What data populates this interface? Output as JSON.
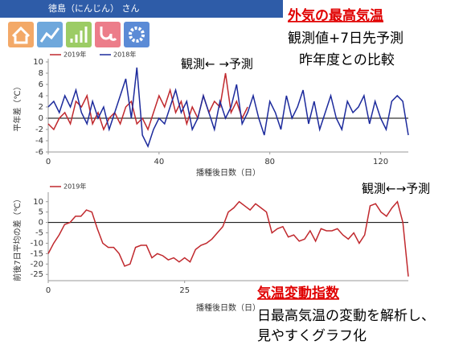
{
  "header": {
    "title": "徳島（にんじん） さん"
  },
  "annotations": {
    "top_title": "外気の最高気温",
    "top_line1": "観測値+7日先予測",
    "top_line2": "昨年度との比較",
    "bottom_title": "気温変動指数",
    "bottom_line1": "日最高気温の変動を解析し、",
    "bottom_line2": "見やすくグラフ化"
  },
  "chart_data": [
    {
      "type": "line",
      "annotation": "観測← →予測",
      "x_label": "播種後日数（日）",
      "y_label": "平年差（℃）",
      "xlim": [
        0,
        130
      ],
      "xticks": [
        0,
        40,
        80,
        120
      ],
      "ylim": [
        -6,
        10
      ],
      "yticks": [
        -6,
        -4,
        -2,
        0,
        2,
        4,
        6,
        8,
        10
      ],
      "x": [
        0,
        2,
        4,
        6,
        8,
        10,
        12,
        14,
        16,
        18,
        20,
        22,
        24,
        26,
        28,
        30,
        32,
        34,
        36,
        38,
        40,
        42,
        44,
        46,
        48,
        50,
        52,
        54,
        56,
        58,
        60,
        62,
        64,
        66,
        68,
        70,
        72,
        74,
        76,
        78,
        80,
        82,
        84,
        86,
        88,
        90,
        92,
        94,
        96,
        98,
        100,
        102,
        104,
        106,
        108,
        110,
        112,
        114,
        116,
        118,
        120,
        122,
        124,
        126,
        128,
        130
      ],
      "series": [
        {
          "name": "2019年",
          "color": "#c0282d",
          "values": [
            -1,
            -2,
            0,
            1,
            -1,
            3,
            2,
            4,
            -1,
            1,
            -2,
            0,
            1,
            -1,
            2,
            3,
            -1,
            0,
            -2,
            1,
            4,
            2,
            5,
            1,
            3,
            -1,
            2,
            0,
            4,
            1,
            3,
            2,
            8,
            1,
            3,
            0,
            2,
            null,
            null,
            null,
            null,
            null,
            null,
            null,
            null,
            null,
            null,
            null,
            null,
            null,
            null,
            null,
            null,
            null,
            null,
            null,
            null,
            null,
            null,
            null,
            null,
            null,
            null,
            null,
            null,
            null
          ]
        },
        {
          "name": "2018年",
          "color": "#1c2a9c",
          "values": [
            2,
            3,
            1,
            4,
            2,
            5,
            1,
            -1,
            3,
            0,
            2,
            -2,
            1,
            4,
            7,
            0,
            9,
            -3,
            -5,
            -2,
            0,
            -1,
            2,
            5,
            1,
            3,
            -2,
            0,
            4,
            1,
            -2,
            3,
            0,
            2,
            6,
            -1,
            1,
            4,
            0,
            -3,
            3,
            1,
            -2,
            4,
            0,
            2,
            5,
            -1,
            3,
            -2,
            1,
            4,
            0,
            -2,
            3,
            1,
            2,
            4,
            -1,
            3,
            0,
            -2,
            3,
            4,
            3,
            -3
          ]
        }
      ]
    },
    {
      "type": "line",
      "annotation": "観測←→予測",
      "x_label": "播種後日数（日）",
      "y_label": "前後7日平均の差（℃）",
      "xlim": [
        0,
        66
      ],
      "xticks": [
        0,
        25
      ],
      "ylim": [
        -28,
        13
      ],
      "yticks": [
        10,
        5,
        0,
        -5,
        -10,
        -15,
        -20,
        -25
      ],
      "x": [
        0,
        1,
        2,
        3,
        4,
        5,
        6,
        7,
        8,
        9,
        10,
        11,
        12,
        13,
        14,
        15,
        16,
        17,
        18,
        19,
        20,
        21,
        22,
        23,
        24,
        25,
        26,
        27,
        28,
        29,
        30,
        31,
        32,
        33,
        34,
        35,
        36,
        37,
        38,
        39,
        40,
        41,
        42,
        43,
        44,
        45,
        46,
        47,
        48,
        49,
        50,
        51,
        52,
        53,
        54,
        55,
        56,
        57,
        58,
        59,
        60,
        61,
        62,
        63,
        64,
        65,
        66
      ],
      "series": [
        {
          "name": "2019年",
          "color": "#c0282d",
          "values": [
            -15,
            -10,
            -6,
            -1,
            0,
            3,
            3,
            6,
            5,
            -3,
            -10,
            -12,
            -12,
            -15,
            -21,
            -20,
            -12,
            -11,
            -11,
            -17,
            -15,
            -16,
            -18,
            -17,
            -19,
            -17,
            -19,
            -13,
            -11,
            -10,
            -8,
            -5,
            -2,
            5,
            7,
            10,
            8,
            6,
            9,
            7,
            5,
            -5,
            -3,
            -2,
            -7,
            -6,
            -9,
            -8,
            -4,
            -9,
            -3,
            -4,
            -4,
            -3,
            -6,
            -8,
            -5,
            -10,
            -6,
            8,
            9,
            5,
            3,
            7,
            10,
            0,
            -26
          ]
        }
      ]
    }
  ]
}
